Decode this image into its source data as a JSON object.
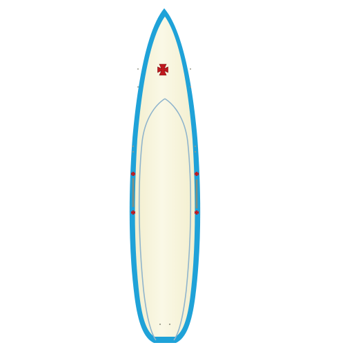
{
  "image": {
    "subject": "surfboard",
    "background_color": "#ffffff"
  },
  "colors": {
    "rail_blue": "#1fa2d8",
    "rail_blue_dark": "#1689bb",
    "deck_cream": "#f3efcf",
    "deck_highlight": "#faf8e6",
    "stringer_line": "#8fb4cc",
    "cross_red": "#c0181e",
    "cross_outline": "#7a0d10",
    "plug_gray": "#9a9a8a"
  },
  "logo": {
    "type": "cross-pattee",
    "placement": "nose-center"
  },
  "side_decals": [
    {
      "side": "left",
      "type": "cross-with-lettering"
    },
    {
      "side": "right",
      "type": "cross-with-lettering"
    }
  ]
}
